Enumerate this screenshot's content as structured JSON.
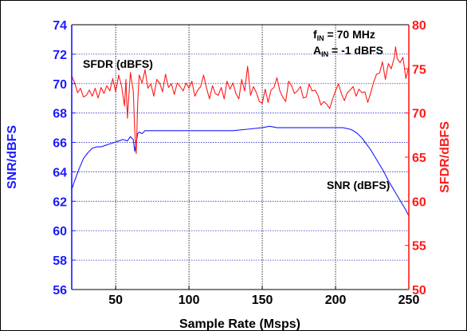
{
  "chart_data": {
    "type": "line",
    "xlabel": "Sample Rate (Msps)",
    "ylabel_left": "SNR/dBFS",
    "ylabel_right": "SFDR/dBFS",
    "xlim": [
      20,
      250
    ],
    "ylim_left": [
      56,
      74
    ],
    "ylim_right": [
      50,
      80
    ],
    "x_ticks": [
      50,
      100,
      150,
      200,
      250
    ],
    "y_ticks_left": [
      56,
      58,
      60,
      62,
      64,
      66,
      68,
      70,
      72,
      74
    ],
    "y_ticks_right": [
      50,
      55,
      60,
      65,
      70,
      75,
      80
    ],
    "grid": true,
    "colors": {
      "snr": "#1a1aff",
      "sfdr": "#ff1a1a",
      "grid": "#3333cc"
    },
    "annotations": {
      "fin_main": "f",
      "fin_sub": "IN",
      "fin_value": " = 70 MHz",
      "ain_main": "A",
      "ain_sub": "IN",
      "ain_value": " = -1 dBFS",
      "sfdr_label": "SFDR (dBFS)",
      "snr_label": "SNR (dBFS)"
    },
    "series": [
      {
        "name": "SNR (dBFS)",
        "axis": "left",
        "x": [
          20,
          22,
          25,
          28,
          31,
          34,
          37,
          40,
          43,
          46,
          49,
          52,
          55,
          58,
          60,
          62,
          63,
          64,
          65,
          66,
          68,
          70,
          75,
          80,
          90,
          100,
          110,
          120,
          130,
          140,
          150,
          155,
          160,
          170,
          180,
          190,
          200,
          205,
          210,
          212,
          215,
          218,
          221,
          224,
          227,
          230,
          233,
          236,
          239,
          242,
          245,
          248,
          250
        ],
        "y": [
          62.8,
          63.4,
          64.2,
          64.9,
          65.3,
          65.6,
          65.7,
          65.7,
          65.8,
          65.9,
          66.0,
          66.1,
          66.2,
          66.1,
          66.4,
          66.2,
          65.4,
          66.0,
          66.6,
          66.7,
          66.6,
          66.8,
          66.8,
          66.8,
          66.8,
          66.8,
          66.8,
          66.8,
          66.8,
          66.9,
          67.0,
          67.1,
          67.0,
          67.0,
          67.0,
          67.0,
          67.0,
          67.0,
          66.9,
          66.8,
          66.6,
          66.3,
          65.9,
          65.5,
          65.0,
          64.5,
          64.0,
          63.4,
          62.9,
          62.4,
          61.9,
          61.4,
          61.0
        ]
      },
      {
        "name": "SFDR (dBFS)",
        "axis": "right",
        "x": [
          20,
          22,
          24,
          26,
          28,
          30,
          32,
          34,
          36,
          38,
          40,
          42,
          44,
          46,
          48,
          50,
          52,
          54,
          56,
          57,
          58,
          60,
          62,
          63,
          64,
          65,
          66,
          68,
          70,
          72,
          74,
          76,
          78,
          80,
          82,
          84,
          86,
          88,
          90,
          92,
          94,
          96,
          98,
          100,
          102,
          104,
          106,
          108,
          110,
          112,
          114,
          116,
          118,
          120,
          122,
          124,
          126,
          128,
          130,
          132,
          134,
          136,
          138,
          140,
          142,
          144,
          146,
          148,
          150,
          152,
          154,
          156,
          158,
          160,
          162,
          164,
          166,
          168,
          170,
          172,
          174,
          176,
          178,
          180,
          182,
          184,
          186,
          188,
          190,
          192,
          194,
          196,
          198,
          200,
          202,
          204,
          206,
          208,
          210,
          212,
          214,
          216,
          218,
          220,
          222,
          224,
          226,
          228,
          230,
          232,
          234,
          236,
          238,
          240,
          241,
          242,
          244,
          246,
          248,
          250
        ],
        "y": [
          74.2,
          73.4,
          72.3,
          72.8,
          71.8,
          72.0,
          72.6,
          71.9,
          72.8,
          71.7,
          72.9,
          72.2,
          73.1,
          72.5,
          73.9,
          72.4,
          74.3,
          73.1,
          70.8,
          73.8,
          69.4,
          74.6,
          72.5,
          68.0,
          65.4,
          71.2,
          74.3,
          73.4,
          74.9,
          72.8,
          73.3,
          71.9,
          73.8,
          73.4,
          72.4,
          74.4,
          72.9,
          73.3,
          72.1,
          73.4,
          73.0,
          72.5,
          73.4,
          72.8,
          73.6,
          71.9,
          72.6,
          73.0,
          74.3,
          72.8,
          71.6,
          73.1,
          72.2,
          72.0,
          72.9,
          71.6,
          73.6,
          72.7,
          73.4,
          72.2,
          71.6,
          73.8,
          72.5,
          75.3,
          72.0,
          73.0,
          72.3,
          71.3,
          71.1,
          72.7,
          71.2,
          72.6,
          72.9,
          74.0,
          72.5,
          71.8,
          71.3,
          73.6,
          73.1,
          72.2,
          72.5,
          73.0,
          71.7,
          71.8,
          73.3,
          72.5,
          72.6,
          72.0,
          70.9,
          71.3,
          71.0,
          70.5,
          71.6,
          72.5,
          73.3,
          72.2,
          71.4,
          72.3,
          72.6,
          73.0,
          71.9,
          72.7,
          72.3,
          72.4,
          71.2,
          72.3,
          73.5,
          74.4,
          74.5,
          75.8,
          73.8,
          75.6,
          75.0,
          76.2,
          77.5,
          76.2,
          75.7,
          76.3,
          73.9,
          75.3
        ]
      }
    ]
  }
}
